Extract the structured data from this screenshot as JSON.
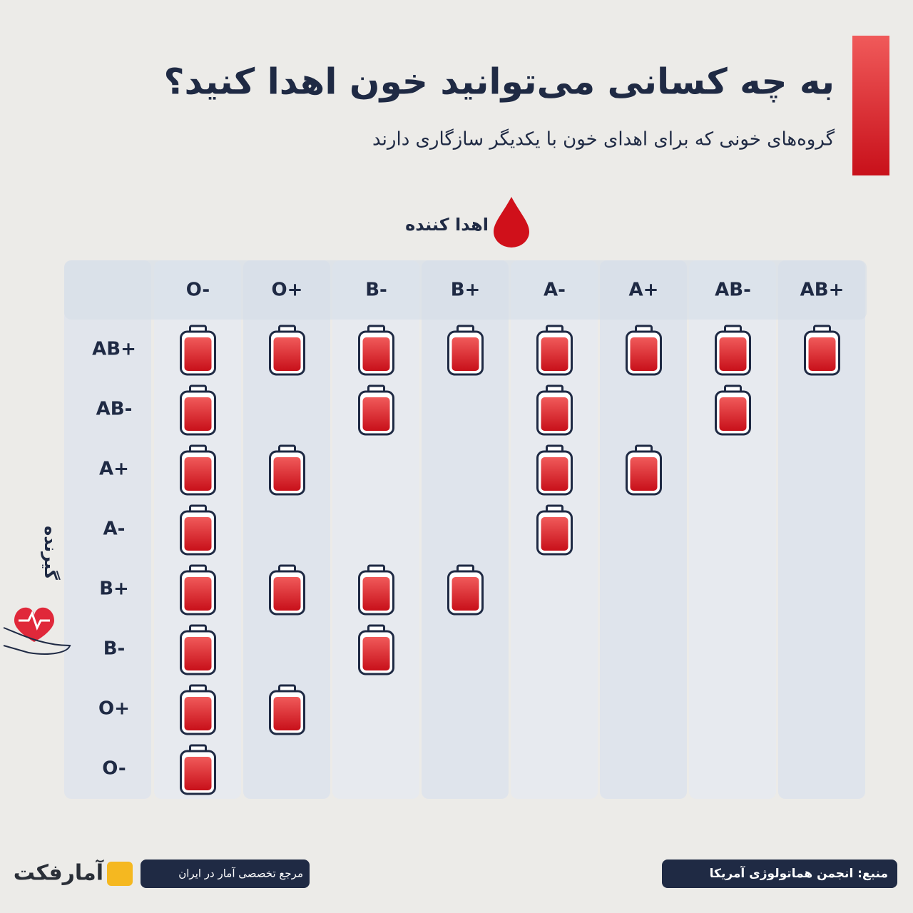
{
  "header": {
    "title": "به چه کسانی می‌توانید خون اهدا کنید؟",
    "subtitle": "گروه‌های خونی که برای اهدای خون با یکدیگر سازگاری دارند"
  },
  "table": {
    "donor_label": "اهدا کننده",
    "recipient_label": "گیرنده",
    "columns": [
      "O-",
      "O+",
      "B-",
      "B+",
      "A-",
      "A+",
      "AB-",
      "AB+"
    ],
    "rows": [
      {
        "label": "AB+",
        "compatible": [
          true,
          true,
          true,
          true,
          true,
          true,
          true,
          true
        ]
      },
      {
        "label": "AB-",
        "compatible": [
          true,
          false,
          true,
          false,
          true,
          false,
          true,
          false
        ]
      },
      {
        "label": "A+",
        "compatible": [
          true,
          true,
          false,
          false,
          true,
          true,
          false,
          false
        ]
      },
      {
        "label": "A-",
        "compatible": [
          true,
          false,
          false,
          false,
          true,
          false,
          false,
          false
        ]
      },
      {
        "label": "B+",
        "compatible": [
          true,
          true,
          true,
          true,
          false,
          false,
          false,
          false
        ]
      },
      {
        "label": "B-",
        "compatible": [
          true,
          false,
          true,
          false,
          false,
          false,
          false,
          false
        ]
      },
      {
        "label": "O+",
        "compatible": [
          true,
          true,
          false,
          false,
          false,
          false,
          false,
          false
        ]
      },
      {
        "label": "O-",
        "compatible": [
          true,
          false,
          false,
          false,
          false,
          false,
          false,
          false
        ]
      }
    ]
  },
  "footer": {
    "source": "منبع: انجمن هماتولوژی آمریکا",
    "tagline": "مرجع تخصصی آمار در ایران",
    "brand": "آمارفکت"
  }
}
